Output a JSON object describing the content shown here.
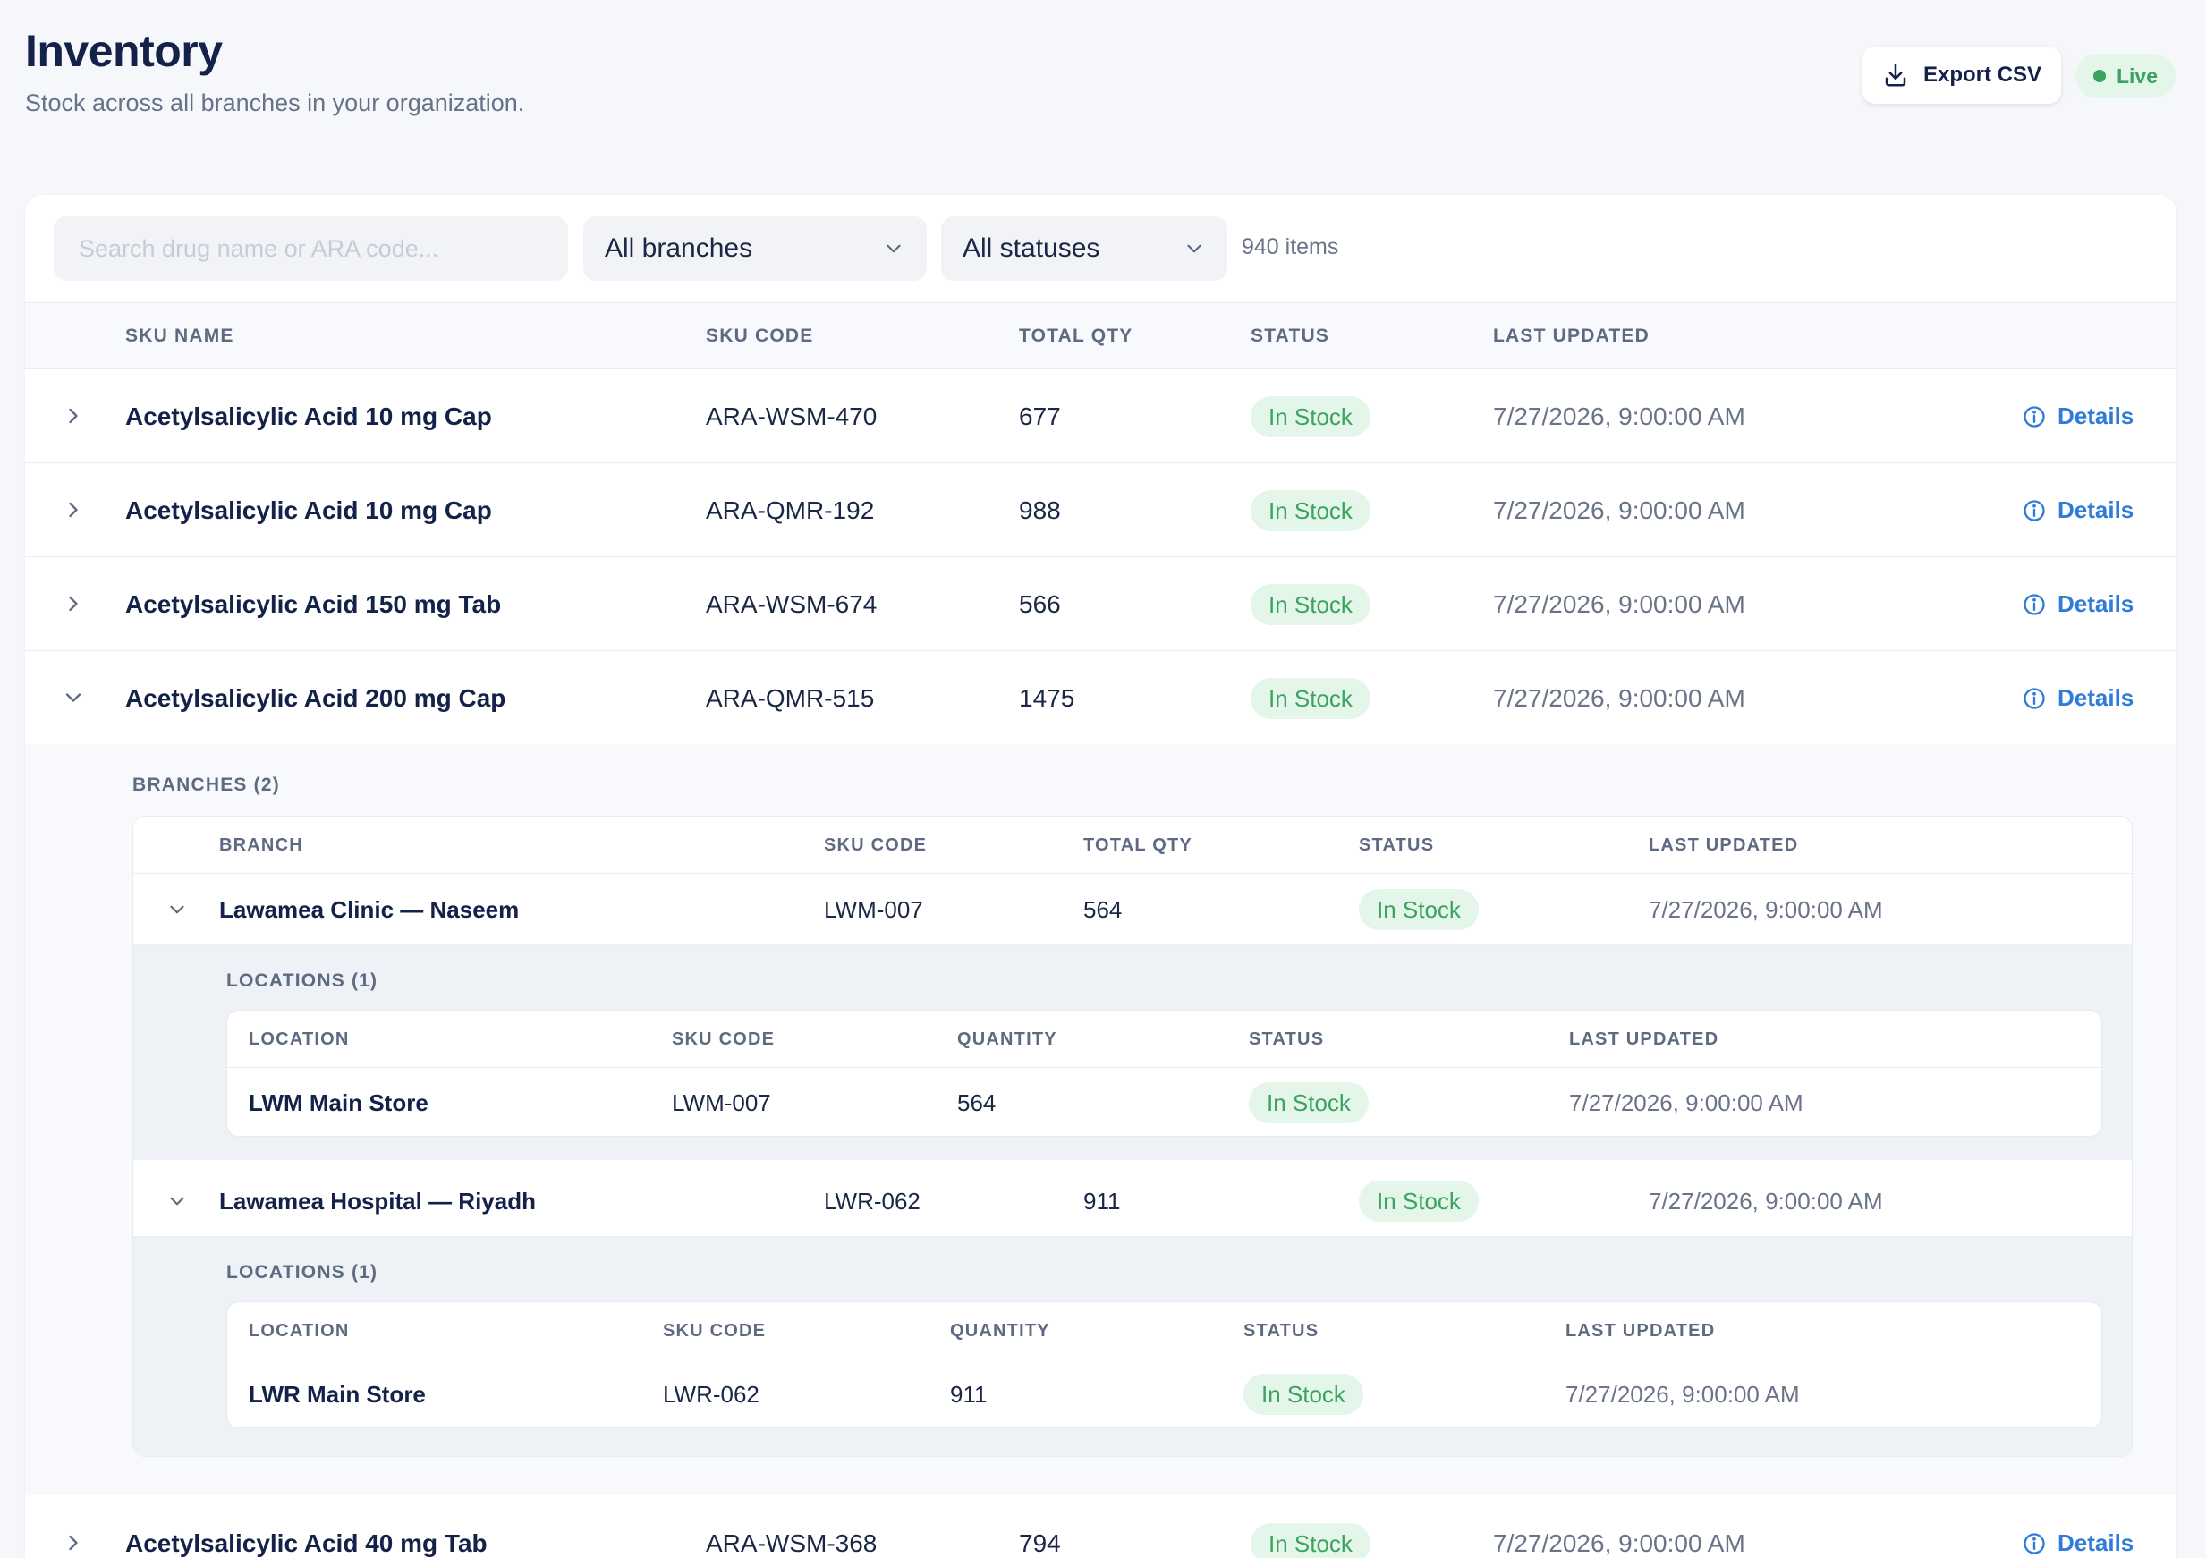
{
  "header": {
    "title": "Inventory",
    "subtitle": "Stock across all branches in your organization.",
    "export_label": "Export CSV",
    "live_label": "Live"
  },
  "filters": {
    "search_placeholder": "Search drug name or ARA code...",
    "branch_select": "All branches",
    "status_select": "All statuses",
    "item_count": "940 items"
  },
  "columns": [
    "SKU NAME",
    "SKU CODE",
    "TOTAL QTY",
    "STATUS",
    "LAST UPDATED"
  ],
  "details_label": "Details",
  "rows": [
    {
      "name": "Acetylsalicylic Acid 10 mg Cap",
      "code": "ARA-WSM-470",
      "qty": "677",
      "status": "In Stock",
      "updated": "7/27/2026, 9:00:00 AM",
      "expanded": false
    },
    {
      "name": "Acetylsalicylic Acid 10 mg Cap",
      "code": "ARA-QMR-192",
      "qty": "988",
      "status": "In Stock",
      "updated": "7/27/2026, 9:00:00 AM",
      "expanded": false
    },
    {
      "name": "Acetylsalicylic Acid 150 mg Tab",
      "code": "ARA-WSM-674",
      "qty": "566",
      "status": "In Stock",
      "updated": "7/27/2026, 9:00:00 AM",
      "expanded": false
    },
    {
      "name": "Acetylsalicylic Acid 200 mg Cap",
      "code": "ARA-QMR-515",
      "qty": "1475",
      "status": "In Stock",
      "updated": "7/27/2026, 9:00:00 AM",
      "expanded": true
    },
    {
      "name": "Acetylsalicylic Acid 40 mg Tab",
      "code": "ARA-WSM-368",
      "qty": "794",
      "status": "In Stock",
      "updated": "7/27/2026, 9:00:00 AM",
      "expanded": false
    }
  ],
  "branches": {
    "label": "BRANCHES (2)",
    "columns": [
      "BRANCH",
      "SKU CODE",
      "TOTAL QTY",
      "STATUS",
      "LAST UPDATED"
    ],
    "items": [
      {
        "name": "Lawamea Clinic — Naseem",
        "code": "LWM-007",
        "qty": "564",
        "status": "In Stock",
        "updated": "7/27/2026, 9:00:00 AM",
        "locations_label": "LOCATIONS (1)",
        "location_columns": [
          "LOCATION",
          "SKU CODE",
          "QUANTITY",
          "STATUS",
          "LAST UPDATED"
        ],
        "locations": [
          {
            "name": "LWM Main Store",
            "code": "LWM-007",
            "qty": "564",
            "status": "In Stock",
            "updated": "7/27/2026, 9:00:00 AM"
          }
        ]
      },
      {
        "name": "Lawamea Hospital — Riyadh",
        "code": "LWR-062",
        "qty": "911",
        "status": "In Stock",
        "updated": "7/27/2026, 9:00:00 AM",
        "locations_label": "LOCATIONS (1)",
        "location_columns": [
          "LOCATION",
          "SKU CODE",
          "QUANTITY",
          "STATUS",
          "LAST UPDATED"
        ],
        "locations": [
          {
            "name": "LWR Main Store",
            "code": "LWR-062",
            "qty": "911",
            "status": "In Stock",
            "updated": "7/27/2026, 9:00:00 AM"
          }
        ]
      }
    ]
  },
  "colors": {
    "accent": "#2f7bd8",
    "success": "#3aa35f",
    "success_bg": "#e4f5ea",
    "title": "#14224a"
  }
}
